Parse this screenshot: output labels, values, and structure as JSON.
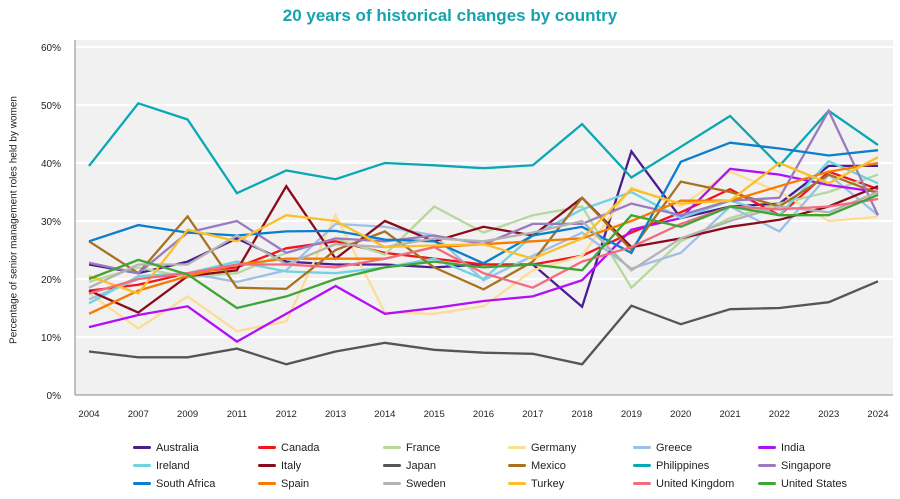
{
  "chart_data": {
    "type": "line",
    "title": "20 years of historical changes by country",
    "xlabel": "",
    "ylabel": "Percentage of senior management roles held by women",
    "ylim": [
      0,
      60
    ],
    "yticks": [
      "0%",
      "10%",
      "20%",
      "30%",
      "40%",
      "50%",
      "60%"
    ],
    "grid": true,
    "legend": "bottom",
    "categories": [
      "2004",
      "2007",
      "2009",
      "2011",
      "2012",
      "2013",
      "2014",
      "2015",
      "2016",
      "2017",
      "2018",
      "2019",
      "2020",
      "2021",
      "2022",
      "2023",
      "2024"
    ],
    "series": [
      {
        "name": "Australia",
        "color": "#4b1d8f",
        "values": [
          22.5,
          21,
          23,
          27,
          23,
          22.5,
          22.5,
          22,
          22.5,
          22.5,
          15.2,
          42,
          30.5,
          32.5,
          33,
          39.5,
          39.5
        ]
      },
      {
        "name": "Canada",
        "color": "#f0151f",
        "values": [
          18,
          19,
          21,
          22,
          25.3,
          26.5,
          24.5,
          23.5,
          22.5,
          22.5,
          24,
          28,
          31.5,
          35.5,
          31,
          38.5,
          35.5
        ]
      },
      {
        "name": "France",
        "color": "#b5d89c",
        "values": [
          19.5,
          22,
          20.3,
          21,
          24.5,
          27,
          24.2,
          32.5,
          28,
          31,
          32.5,
          18.5,
          26.5,
          30.5,
          33,
          35,
          38
        ]
      },
      {
        "name": "Germany",
        "color": "#fddc95",
        "values": [
          17.5,
          11.5,
          17,
          11,
          12.7,
          31,
          14.2,
          14,
          15.3,
          21.5,
          24,
          35.8,
          32.5,
          38.5,
          35,
          30,
          30.7
        ]
      },
      {
        "name": "Greece",
        "color": "#9dbfe9",
        "values": [
          16.5,
          20,
          21,
          19.5,
          21.5,
          29.5,
          29,
          27.5,
          19.8,
          24,
          28,
          21.8,
          24.5,
          32.5,
          28.2,
          38,
          31
        ]
      },
      {
        "name": "India",
        "color": "#b30ff6",
        "values": [
          11.7,
          13.8,
          15.3,
          9.2,
          14,
          18.8,
          14,
          15,
          16.2,
          17,
          19.8,
          28.5,
          30.5,
          39,
          38,
          36.2,
          35
        ]
      },
      {
        "name": "Ireland",
        "color": "#6fd3e0",
        "values": [
          15.8,
          20.5,
          21,
          23,
          21.3,
          21,
          22,
          23.5,
          20,
          27.5,
          32,
          35,
          30.5,
          33.5,
          31,
          40.3,
          36.5
        ]
      },
      {
        "name": "Italy",
        "color": "#8b0b1c",
        "values": [
          18,
          14.2,
          20.5,
          21.5,
          36,
          23.5,
          30,
          26.5,
          29,
          27.5,
          34,
          25.5,
          27,
          29,
          30.2,
          32.5,
          36
        ]
      },
      {
        "name": "Japan",
        "color": "#555555",
        "values": [
          7.5,
          6.5,
          6.5,
          8,
          5.3,
          7.5,
          9,
          7.8,
          7.3,
          7.1,
          5.3,
          15.4,
          12.2,
          14.8,
          15,
          16,
          19.6
        ]
      },
      {
        "name": "Mexico",
        "color": "#a8721f",
        "values": [
          26.5,
          21,
          30.8,
          18.5,
          18.3,
          25,
          28.2,
          22,
          18.2,
          23,
          34,
          25,
          36.8,
          35,
          32.5,
          38,
          34.8
        ]
      },
      {
        "name": "Philippines",
        "color": "#0aa7b5",
        "values": [
          39.5,
          50.3,
          47.5,
          34.8,
          38.7,
          37.2,
          40,
          39.6,
          39.1,
          39.6,
          46.7,
          37.5,
          42.8,
          48.1,
          39.5,
          49,
          43.1
        ]
      },
      {
        "name": "Singapore",
        "color": "#9b7bc0",
        "values": [
          22.8,
          21,
          28,
          30,
          24.5,
          27,
          26.5,
          27.5,
          26,
          29.5,
          29.5,
          33,
          31,
          33.5,
          34,
          49,
          31
        ]
      },
      {
        "name": "South Africa",
        "color": "#0a7fcc",
        "values": [
          26.5,
          29.3,
          28,
          27.5,
          28.2,
          28.3,
          26.8,
          26.5,
          22.7,
          27.5,
          29,
          24.5,
          40.2,
          43.5,
          42.5,
          41.3,
          42.2
        ]
      },
      {
        "name": "Spain",
        "color": "#f57c00",
        "values": [
          14,
          18,
          20.5,
          22.5,
          23.5,
          23.5,
          23.5,
          25.5,
          26,
          26.5,
          27,
          30,
          33.5,
          33.5,
          36,
          38.5,
          40
        ]
      },
      {
        "name": "Sweden",
        "color": "#b3b3b3",
        "values": [
          18.5,
          22.5,
          22.5,
          27.5,
          22.5,
          26,
          25.5,
          27,
          26.5,
          28,
          30,
          21.5,
          27,
          30,
          32.5,
          31.5,
          35
        ]
      },
      {
        "name": "Turkey",
        "color": "#fbbf2a",
        "values": [
          20.5,
          17.5,
          28.5,
          26.5,
          31,
          30,
          25.5,
          25.8,
          26,
          23.5,
          27,
          35.5,
          33,
          33.5,
          40,
          36.5,
          41
        ]
      },
      {
        "name": "United Kingdom",
        "color": "#f36c7e",
        "values": [
          17.5,
          20,
          21,
          22.5,
          22.5,
          22,
          23.5,
          25.5,
          21,
          18.5,
          23,
          25.5,
          29.5,
          32.5,
          32,
          32.5,
          33.8
        ]
      },
      {
        "name": "United States",
        "color": "#3fa535",
        "values": [
          20,
          23.3,
          20.8,
          15,
          17,
          20,
          22,
          23,
          22,
          22.5,
          21.5,
          31,
          29,
          32.5,
          31,
          31,
          34.5
        ]
      }
    ]
  }
}
